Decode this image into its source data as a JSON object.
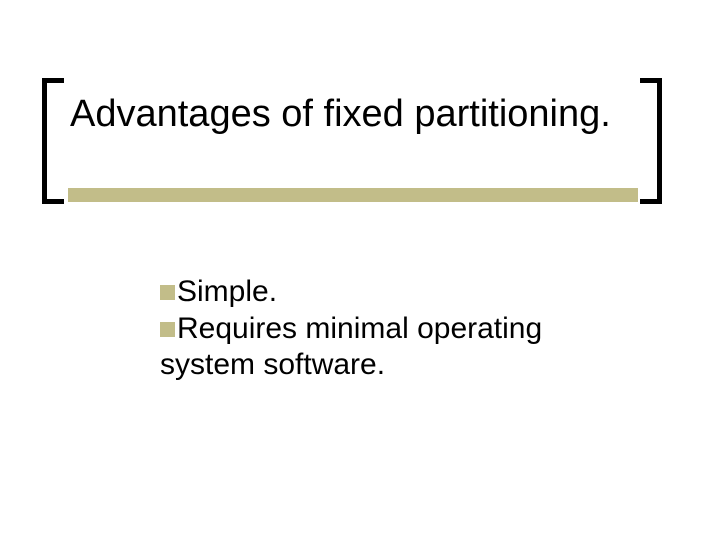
{
  "slide": {
    "title": "Advantages of fixed partitioning.",
    "title_fontsize": 38,
    "title_color": "#000000",
    "bracket_color": "#000000",
    "bracket_stroke": 5,
    "underline_color": "#c2bd89",
    "underline_height": 14,
    "background": "#ffffff"
  },
  "bullets": {
    "marker_color": "#c2bd89",
    "marker_size": 15,
    "text_fontsize": 30,
    "text_color": "#000000",
    "items": [
      "Simple.",
      "Requires minimal operating system software."
    ]
  }
}
